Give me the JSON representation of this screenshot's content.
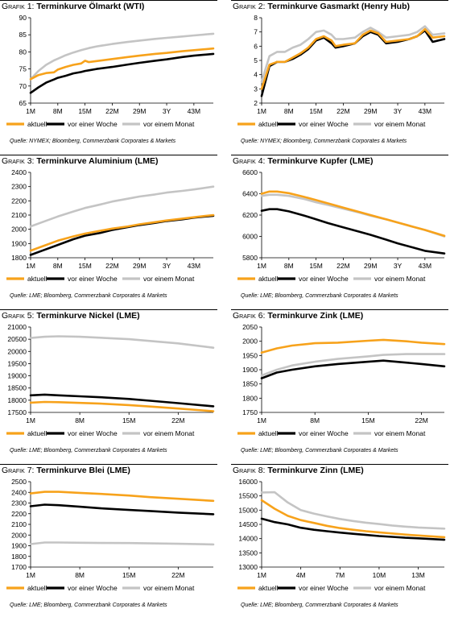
{
  "colors": {
    "aktuell": "#f7a21b",
    "woche": "#000000",
    "monat": "#c4c4c4"
  },
  "legend": [
    "aktuell",
    "vor einer Woche",
    "vor einem Monat"
  ],
  "chart_data": [
    {
      "type": "line",
      "prefix": "Grafik 1:",
      "title": "Terminkurve Ölmarkt (WTI)",
      "source": "Quelle: NYMEX; Bloomberg, Commerzbank Corporates & Markets",
      "x": [
        1,
        3,
        5,
        7,
        8,
        10,
        12,
        14,
        15,
        16,
        18,
        22,
        26,
        29,
        33,
        36,
        40,
        43,
        48
      ],
      "xticks": [
        {
          "v": 1,
          "l": "1M"
        },
        {
          "v": 8,
          "l": "8M"
        },
        {
          "v": 15,
          "l": "15M"
        },
        {
          "v": 22,
          "l": "22M"
        },
        {
          "v": 29,
          "l": "29M"
        },
        {
          "v": 36,
          "l": "3Y"
        },
        {
          "v": 43,
          "l": "43M"
        }
      ],
      "xlim": [
        1,
        48
      ],
      "ylim": [
        65,
        90
      ],
      "yticks": [
        65,
        70,
        75,
        80,
        85,
        90
      ],
      "series": [
        {
          "name": "aktuell",
          "values": [
            72.0,
            73.2,
            73.8,
            74.0,
            74.8,
            75.6,
            76.2,
            76.6,
            77.4,
            77.0,
            77.3,
            77.9,
            78.5,
            78.9,
            79.4,
            79.7,
            80.2,
            80.5,
            81.0
          ]
        },
        {
          "name": "vor einer Woche",
          "values": [
            68.0,
            69.6,
            71.0,
            71.9,
            72.4,
            73.0,
            73.7,
            74.1,
            74.4,
            74.6,
            75.0,
            75.6,
            76.3,
            76.8,
            77.4,
            77.8,
            78.5,
            78.9,
            79.4
          ]
        },
        {
          "name": "vor einem Monat",
          "values": [
            72.0,
            74.4,
            76.2,
            77.5,
            78.0,
            79.0,
            79.8,
            80.5,
            80.8,
            81.1,
            81.6,
            82.3,
            82.9,
            83.3,
            83.8,
            84.1,
            84.5,
            84.8,
            85.3
          ]
        }
      ]
    },
    {
      "type": "line",
      "prefix": "Grafik 2:",
      "title": "Terminkurve Gasmarkt (Henry Hub)",
      "source": "Quelle: NYMEX; Bloomberg, Commerzbank Corporates & Markets",
      "x": [
        1,
        3,
        5,
        7,
        9,
        11,
        13,
        15,
        17,
        19,
        20,
        22,
        25,
        27,
        29,
        31,
        33,
        36,
        39,
        41,
        43,
        45,
        48
      ],
      "xticks": [
        {
          "v": 1,
          "l": "1M"
        },
        {
          "v": 8,
          "l": "8M"
        },
        {
          "v": 15,
          "l": "15M"
        },
        {
          "v": 22,
          "l": "22M"
        },
        {
          "v": 29,
          "l": "29M"
        },
        {
          "v": 36,
          "l": "3Y"
        },
        {
          "v": 43,
          "l": "43M"
        }
      ],
      "xlim": [
        1,
        48
      ],
      "ylim": [
        2,
        8
      ],
      "yticks": [
        2,
        3,
        4,
        5,
        6,
        7,
        8
      ],
      "series": [
        {
          "name": "aktuell",
          "values": [
            3.0,
            4.7,
            4.9,
            4.9,
            5.2,
            5.5,
            5.9,
            6.5,
            6.7,
            6.4,
            6.0,
            6.1,
            6.2,
            6.8,
            7.1,
            6.9,
            6.3,
            6.4,
            6.5,
            6.7,
            7.2,
            6.6,
            6.7
          ]
        },
        {
          "name": "vor einer Woche",
          "values": [
            2.5,
            4.6,
            4.9,
            4.9,
            5.1,
            5.4,
            5.8,
            6.4,
            6.6,
            6.2,
            5.9,
            6.0,
            6.2,
            6.7,
            7.0,
            6.8,
            6.2,
            6.3,
            6.5,
            6.7,
            7.1,
            6.3,
            6.5
          ]
        },
        {
          "name": "vor einem Monat",
          "values": [
            3.5,
            5.3,
            5.6,
            5.6,
            5.9,
            6.1,
            6.5,
            7.0,
            7.1,
            6.8,
            6.5,
            6.5,
            6.6,
            7.0,
            7.3,
            7.0,
            6.6,
            6.7,
            6.8,
            7.0,
            7.4,
            6.8,
            6.9
          ]
        }
      ]
    },
    {
      "type": "line",
      "prefix": "Grafik 3:",
      "title": "Terminkurve Aluminium (LME)",
      "source": "Quelle: LME; Bloomberg, Commerzbank Corporates & Markets",
      "x": [
        1,
        4,
        8,
        12,
        15,
        19,
        22,
        26,
        29,
        33,
        36,
        40,
        43,
        48
      ],
      "xticks": [
        {
          "v": 1,
          "l": "1M"
        },
        {
          "v": 8,
          "l": "8M"
        },
        {
          "v": 15,
          "l": "15M"
        },
        {
          "v": 22,
          "l": "22M"
        },
        {
          "v": 29,
          "l": "29M"
        },
        {
          "v": 36,
          "l": "3Y"
        },
        {
          "v": 43,
          "l": "43M"
        }
      ],
      "xlim": [
        1,
        48
      ],
      "ylim": [
        1800,
        2400
      ],
      "yticks": [
        1800,
        1900,
        2000,
        2100,
        2200,
        2300,
        2400
      ],
      "series": [
        {
          "name": "aktuell",
          "values": [
            1850,
            1880,
            1920,
            1950,
            1970,
            1990,
            2005,
            2020,
            2035,
            2050,
            2062,
            2075,
            2085,
            2100
          ]
        },
        {
          "name": "vor einer Woche",
          "values": [
            1820,
            1850,
            1890,
            1930,
            1955,
            1975,
            1995,
            2015,
            2030,
            2045,
            2058,
            2070,
            2082,
            2095
          ]
        },
        {
          "name": "vor einem Monat",
          "values": [
            2020,
            2050,
            2090,
            2125,
            2150,
            2175,
            2195,
            2215,
            2230,
            2245,
            2258,
            2270,
            2280,
            2300
          ]
        }
      ]
    },
    {
      "type": "line",
      "prefix": "Grafik 4:",
      "title": "Terminkurve Kupfer (LME)",
      "source": "Quelle: LME; Bloomberg, Commerzbank Corporates & Markets",
      "x": [
        1,
        3,
        5,
        8,
        12,
        15,
        18,
        22,
        26,
        29,
        33,
        36,
        40,
        43,
        48
      ],
      "xticks": [
        {
          "v": 1,
          "l": "1M"
        },
        {
          "v": 8,
          "l": "8M"
        },
        {
          "v": 15,
          "l": "15M"
        },
        {
          "v": 22,
          "l": "22M"
        },
        {
          "v": 29,
          "l": "29M"
        },
        {
          "v": 36,
          "l": "3Y"
        },
        {
          "v": 43,
          "l": "43M"
        }
      ],
      "xlim": [
        1,
        48
      ],
      "ylim": [
        5800,
        6600
      ],
      "yticks": [
        5800,
        6000,
        6200,
        6400,
        6600
      ],
      "series": [
        {
          "name": "aktuell",
          "values": [
            6400,
            6420,
            6420,
            6405,
            6370,
            6340,
            6310,
            6270,
            6230,
            6200,
            6160,
            6130,
            6090,
            6060,
            6005
          ]
        },
        {
          "name": "vor einer Woche",
          "values": [
            6240,
            6255,
            6255,
            6235,
            6195,
            6160,
            6125,
            6085,
            6045,
            6015,
            5970,
            5935,
            5895,
            5865,
            5840
          ]
        },
        {
          "name": "vor einem Monat",
          "values": [
            6380,
            6390,
            6390,
            6380,
            6350,
            6320,
            6295,
            6260,
            6225,
            6195,
            6160,
            6130,
            6090,
            6060,
            6000
          ]
        }
      ]
    },
    {
      "type": "line",
      "prefix": "Grafik 5:",
      "title": "Terminkurve Nickel (LME)",
      "source": "Quelle: LME; Bloomberg, Commerzbank Corporates & Markets",
      "x": [
        1,
        3,
        5,
        8,
        11,
        15,
        18,
        22,
        27
      ],
      "xticks": [
        {
          "v": 1,
          "l": "1M"
        },
        {
          "v": 8,
          "l": "8M"
        },
        {
          "v": 15,
          "l": "15M"
        },
        {
          "v": 22,
          "l": "22M"
        }
      ],
      "xlim": [
        1,
        27
      ],
      "ylim": [
        17500,
        21000
      ],
      "yticks": [
        17500,
        18000,
        18500,
        19000,
        19500,
        20000,
        20500,
        21000
      ],
      "series": [
        {
          "name": "aktuell",
          "values": [
            17900,
            17930,
            17920,
            17890,
            17860,
            17800,
            17740,
            17660,
            17550
          ]
        },
        {
          "name": "vor einer Woche",
          "values": [
            18200,
            18230,
            18200,
            18160,
            18120,
            18050,
            17980,
            17880,
            17750
          ]
        },
        {
          "name": "vor einem Monat",
          "values": [
            20550,
            20600,
            20620,
            20600,
            20560,
            20500,
            20430,
            20330,
            20150
          ]
        }
      ]
    },
    {
      "type": "line",
      "prefix": "Grafik 6:",
      "title": "Terminkurve Zink (LME)",
      "source": "Quelle: LME; Bloomberg, Commerzbank Corporates & Markets",
      "x": [
        1,
        3,
        5,
        8,
        11,
        15,
        17,
        20,
        22,
        25
      ],
      "xticks": [
        {
          "v": 1,
          "l": "1M"
        },
        {
          "v": 8,
          "l": "8M"
        },
        {
          "v": 15,
          "l": "15M"
        },
        {
          "v": 22,
          "l": "22M"
        }
      ],
      "xlim": [
        1,
        25
      ],
      "ylim": [
        1750,
        2050
      ],
      "yticks": [
        1750,
        1800,
        1850,
        1900,
        1950,
        2000,
        2050
      ],
      "series": [
        {
          "name": "aktuell",
          "values": [
            1960,
            1975,
            1985,
            1993,
            1995,
            2002,
            2005,
            2000,
            1995,
            1990
          ]
        },
        {
          "name": "vor einer Woche",
          "values": [
            1870,
            1890,
            1900,
            1912,
            1920,
            1928,
            1932,
            1925,
            1920,
            1912
          ]
        },
        {
          "name": "vor einem Monat",
          "values": [
            1880,
            1900,
            1915,
            1928,
            1938,
            1947,
            1952,
            1955,
            1955,
            1955
          ]
        }
      ]
    },
    {
      "type": "line",
      "prefix": "Grafik 7:",
      "title": "Terminkurve Blei (LME)",
      "source": "Quelle: LME; Bloomberg, Commerzbank Corporates & Markets",
      "x": [
        1,
        3,
        5,
        8,
        11,
        15,
        18,
        22,
        27
      ],
      "xticks": [
        {
          "v": 1,
          "l": "1M"
        },
        {
          "v": 8,
          "l": "8M"
        },
        {
          "v": 15,
          "l": "15M"
        },
        {
          "v": 22,
          "l": "22M"
        }
      ],
      "xlim": [
        1,
        27
      ],
      "ylim": [
        1700,
        2500
      ],
      "yticks": [
        1700,
        1800,
        1900,
        2000,
        2100,
        2200,
        2300,
        2400,
        2500
      ],
      "series": [
        {
          "name": "aktuell",
          "values": [
            2390,
            2405,
            2405,
            2395,
            2385,
            2370,
            2355,
            2340,
            2320
          ]
        },
        {
          "name": "vor einer Woche",
          "values": [
            2270,
            2285,
            2280,
            2265,
            2250,
            2235,
            2225,
            2210,
            2195
          ]
        },
        {
          "name": "vor einem Monat",
          "values": [
            1915,
            1930,
            1930,
            1928,
            1926,
            1925,
            1922,
            1918,
            1912
          ]
        }
      ]
    },
    {
      "type": "line",
      "prefix": "Grafik 8:",
      "title": "Terminkurve Zinn (LME)",
      "source": "Quelle: LME; Bloomberg, Commerzbank Corporates & Markets",
      "x": [
        1,
        2,
        3,
        4,
        5,
        6,
        7,
        8,
        9,
        10,
        11,
        12,
        13,
        15
      ],
      "xticks": [
        {
          "v": 1,
          "l": "1M"
        },
        {
          "v": 4,
          "l": "4M"
        },
        {
          "v": 7,
          "l": "7M"
        },
        {
          "v": 10,
          "l": "10M"
        },
        {
          "v": 13,
          "l": "13M"
        }
      ],
      "xlim": [
        1,
        15
      ],
      "ylim": [
        13000,
        16000
      ],
      "yticks": [
        13000,
        13500,
        14000,
        14500,
        15000,
        15500,
        16000
      ],
      "series": [
        {
          "name": "aktuell",
          "values": [
            15350,
            15050,
            14800,
            14650,
            14550,
            14450,
            14370,
            14310,
            14260,
            14220,
            14180,
            14140,
            14110,
            14050
          ]
        },
        {
          "name": "vor einer Woche",
          "values": [
            14700,
            14580,
            14500,
            14380,
            14310,
            14260,
            14210,
            14170,
            14130,
            14090,
            14060,
            14030,
            14010,
            13960
          ]
        },
        {
          "name": "vor einem Monat",
          "values": [
            15620,
            15630,
            15270,
            15000,
            14880,
            14780,
            14690,
            14620,
            14560,
            14510,
            14460,
            14420,
            14390,
            14350
          ]
        }
      ]
    }
  ]
}
